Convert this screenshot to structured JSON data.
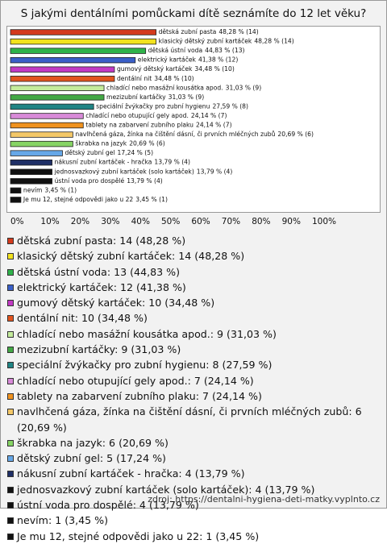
{
  "chart_data": {
    "type": "barh",
    "title": "S jakými dentálními pomůckami dítě seznámíte do 12 let věku?",
    "categories": [
      "dětská zubní pasta",
      "klasický dětský zubní kartáček",
      "dětská ústní voda",
      "elektrický kartáček",
      "gumový dětský kartáček",
      "dentální nit",
      "chladící nebo masážní kousátka apod.",
      "mezizubní kartáčky",
      "speciální žvýkačky pro zubní hygienu",
      "chladící nebo otupující gely apod.",
      "tablety na zabarvení zubního plaku",
      "navlhčená gáza, žínka na čištění dásní, či prvních mléčných zubů",
      "škrabka na jazyk",
      "dětský zubní gel",
      "nákusní zubní kartáček - hračka",
      "jednosvazkový zubní kartáček (solo kartáček)",
      "ústní voda pro dospělé",
      "nevím",
      "Je mu 12, stejné odpovědi jako u 22"
    ],
    "values": [
      48.28,
      48.28,
      44.83,
      41.38,
      34.48,
      34.48,
      31.03,
      31.03,
      27.59,
      24.14,
      24.14,
      20.69,
      20.69,
      17.24,
      13.79,
      13.79,
      13.79,
      3.45,
      3.45
    ],
    "value_labels": [
      "48,28 % (14)",
      "48,28 % (14)",
      "44,83 % (13)",
      "41,38 % (12)",
      "34,48 % (10)",
      "34,48 % (10)",
      "31,03 % (9)",
      "31,03 % (9)",
      "27,59 % (8)",
      "24,14 % (7)",
      "24,14 % (7)",
      "20,69 % (6)",
      "20,69 % (6)",
      "17,24 % (5)",
      "13,79 % (4)",
      "13,79 % (4)",
      "13,79 % (4)",
      "3,45 % (1)",
      "3,45 % (1)"
    ],
    "legend_labels": [
      "dětská zubní pasta: 14 (48,28 %)",
      "klasický dětský zubní kartáček: 14 (48,28 %)",
      "dětská ústní voda: 13 (44,83 %)",
      "elektrický kartáček: 12 (41,38 %)",
      "gumový dětský kartáček: 10 (34,48 %)",
      "dentální nit: 10 (34,48 %)",
      "chladící nebo masážní kousátka apod.: 9 (31,03 %)",
      "mezizubní kartáčky: 9 (31,03 %)",
      "speciální žvýkačky pro zubní hygienu: 8 (27,59 %)",
      "chladící nebo otupující gely apod.: 7 (24,14 %)",
      "tablety na zabarvení zubního plaku: 7 (24,14 %)",
      "navlhčená gáza, žínka na čištění dásní, či prvních mléčných zubů: 6 (20,69 %)",
      "škrabka na jazyk: 6 (20,69 %)",
      "dětský zubní gel: 5 (17,24 %)",
      "nákusní zubní kartáček - hračka: 4 (13,79 %)",
      "jednosvazkový zubní kartáček (solo kartáček): 4 (13,79 %)",
      "ústní voda pro dospělé: 4 (13,79 %)",
      "nevím: 1 (3,45 %)",
      "Je mu 12, stejné odpovědi jako u 22: 1 (3,45 %)"
    ],
    "colors": [
      "#d43a1c",
      "#f2e21e",
      "#2fb24a",
      "#3a5fc8",
      "#c23ac4",
      "#e2541e",
      "#c4ec9c",
      "#43a845",
      "#1f8484",
      "#d88ad8",
      "#f0921e",
      "#f4c868",
      "#86d464",
      "#66a8e8",
      "#1f2f66",
      "#111111",
      "#111111",
      "#111111",
      "#111111"
    ],
    "xlim": [
      0,
      100
    ],
    "xticks": [
      {
        "value": 0,
        "label": "0%"
      },
      {
        "value": 10,
        "label": "10%"
      },
      {
        "value": 20,
        "label": "20%"
      },
      {
        "value": 30,
        "label": "30%"
      },
      {
        "value": 40,
        "label": "40%"
      },
      {
        "value": 50,
        "label": "50%"
      },
      {
        "value": 60,
        "label": "60%"
      },
      {
        "value": 70,
        "label": "70%"
      },
      {
        "value": 80,
        "label": "80%"
      },
      {
        "value": 90,
        "label": "90%"
      },
      {
        "value": 100,
        "label": "100%"
      }
    ],
    "source": "zdroj: https://dentalni-hygiena-deti-matky.vyplnto.cz"
  }
}
